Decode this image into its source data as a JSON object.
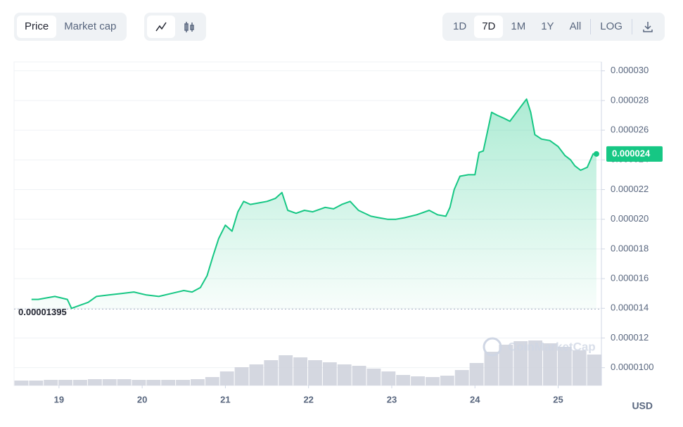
{
  "controls": {
    "modes": [
      "Price",
      "Market cap"
    ],
    "ranges": [
      "1D",
      "7D",
      "1M",
      "1Y",
      "All"
    ],
    "scale": "LOG"
  },
  "chart_data": {
    "type": "line",
    "color": "#16c784",
    "x": [
      18.67,
      18.75,
      18.85,
      18.95,
      19.1,
      19.15,
      19.25,
      19.35,
      19.45,
      19.6,
      19.75,
      19.9,
      20.05,
      20.2,
      20.35,
      20.5,
      20.6,
      20.7,
      20.78,
      20.85,
      20.92,
      21.0,
      21.08,
      21.15,
      21.22,
      21.3,
      21.4,
      21.5,
      21.6,
      21.68,
      21.75,
      21.85,
      21.95,
      22.05,
      22.2,
      22.3,
      22.4,
      22.5,
      22.6,
      22.75,
      22.85,
      22.95,
      23.05,
      23.15,
      23.3,
      23.45,
      23.55,
      23.65,
      23.7,
      23.75,
      23.82,
      23.92,
      24.0,
      24.05,
      24.1,
      24.15,
      24.2,
      24.27,
      24.35,
      24.42,
      24.5,
      24.58,
      24.62,
      24.67,
      24.72,
      24.8,
      24.9,
      25.0,
      25.08,
      25.15,
      25.2,
      25.27,
      25.35,
      25.42,
      25.46
    ],
    "values": [
      1.46e-05,
      1.46e-05,
      1.47e-05,
      1.48e-05,
      1.46e-05,
      1.4e-05,
      1.42e-05,
      1.44e-05,
      1.48e-05,
      1.49e-05,
      1.5e-05,
      1.51e-05,
      1.49e-05,
      1.48e-05,
      1.5e-05,
      1.52e-05,
      1.51e-05,
      1.54e-05,
      1.62e-05,
      1.75e-05,
      1.87e-05,
      1.96e-05,
      1.92e-05,
      2.05e-05,
      2.12e-05,
      2.1e-05,
      2.11e-05,
      2.12e-05,
      2.14e-05,
      2.18e-05,
      2.06e-05,
      2.04e-05,
      2.06e-05,
      2.05e-05,
      2.08e-05,
      2.07e-05,
      2.1e-05,
      2.12e-05,
      2.06e-05,
      2.02e-05,
      2.01e-05,
      2e-05,
      2e-05,
      2.01e-05,
      2.03e-05,
      2.06e-05,
      2.03e-05,
      2.02e-05,
      2.08e-05,
      2.2e-05,
      2.29e-05,
      2.3e-05,
      2.3e-05,
      2.45e-05,
      2.46e-05,
      2.59e-05,
      2.72e-05,
      2.7e-05,
      2.68e-05,
      2.66e-05,
      2.72e-05,
      2.78e-05,
      2.81e-05,
      2.72e-05,
      2.57e-05,
      2.54e-05,
      2.53e-05,
      2.49e-05,
      2.43e-05,
      2.4e-05,
      2.36e-05,
      2.33e-05,
      2.35e-05,
      2.44e-05,
      2.44e-05
    ],
    "xlim": [
      18.46,
      25.52
    ],
    "xticks": [
      19,
      20,
      21,
      22,
      23,
      24,
      25
    ],
    "ylim": [
      8.8e-06,
      3.06e-05
    ],
    "yticks": [
      {
        "value": 3e-05,
        "label": "0.000030"
      },
      2.8e-05,
      2.6e-05,
      2.4e-05,
      2.2e-05,
      {
        "value": 2e-05,
        "label": "0.000020"
      },
      1.8e-05,
      1.6e-05,
      1.4e-05,
      1.2e-05,
      {
        "value": 1e-05,
        "label": "0.0000100"
      }
    ],
    "grid": true,
    "reference": 1.395e-05,
    "current_price": {
      "value": 2.44e-05,
      "label": "0.000024"
    },
    "volume": {
      "color": "#c9cdd8",
      "ylim": [
        0,
        100
      ],
      "values": [
        7,
        7,
        8,
        8,
        8,
        9,
        9,
        9,
        8,
        8,
        8,
        8,
        9,
        12,
        20,
        26,
        30,
        36,
        43,
        40,
        36,
        33,
        30,
        28,
        24,
        20,
        15,
        13,
        12,
        14,
        22,
        32,
        48,
        58,
        63,
        64,
        60,
        55,
        50,
        44
      ]
    },
    "watermark": "CoinMarketCap",
    "unit_label": "USD"
  }
}
